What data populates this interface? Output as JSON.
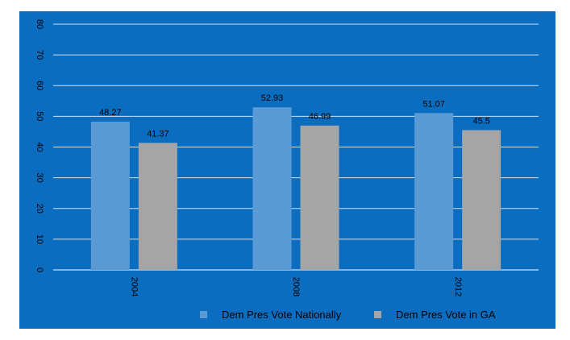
{
  "chart_data": {
    "type": "bar",
    "categories": [
      "2004",
      "2008",
      "2012"
    ],
    "series": [
      {
        "name": "Dem Pres Vote Nationally",
        "values": [
          48.27,
          52.93,
          51.07
        ],
        "color": "#5b9bd5"
      },
      {
        "name": "Dem Pres Vote in GA",
        "values": [
          41.37,
          46.99,
          45.5
        ],
        "color": "#a5a5a5"
      }
    ],
    "data_labels": [
      [
        "48.27",
        "52.93",
        "51.07"
      ],
      [
        "41.37",
        "46.99",
        "45.5"
      ]
    ],
    "ylim": [
      0,
      80
    ],
    "yticks": [
      0,
      10,
      20,
      30,
      40,
      50,
      60,
      70,
      80
    ],
    "grid": true,
    "legend_position": "bottom",
    "background_color": "#0b6dbf",
    "gridline_color": "#cfe0f2"
  }
}
